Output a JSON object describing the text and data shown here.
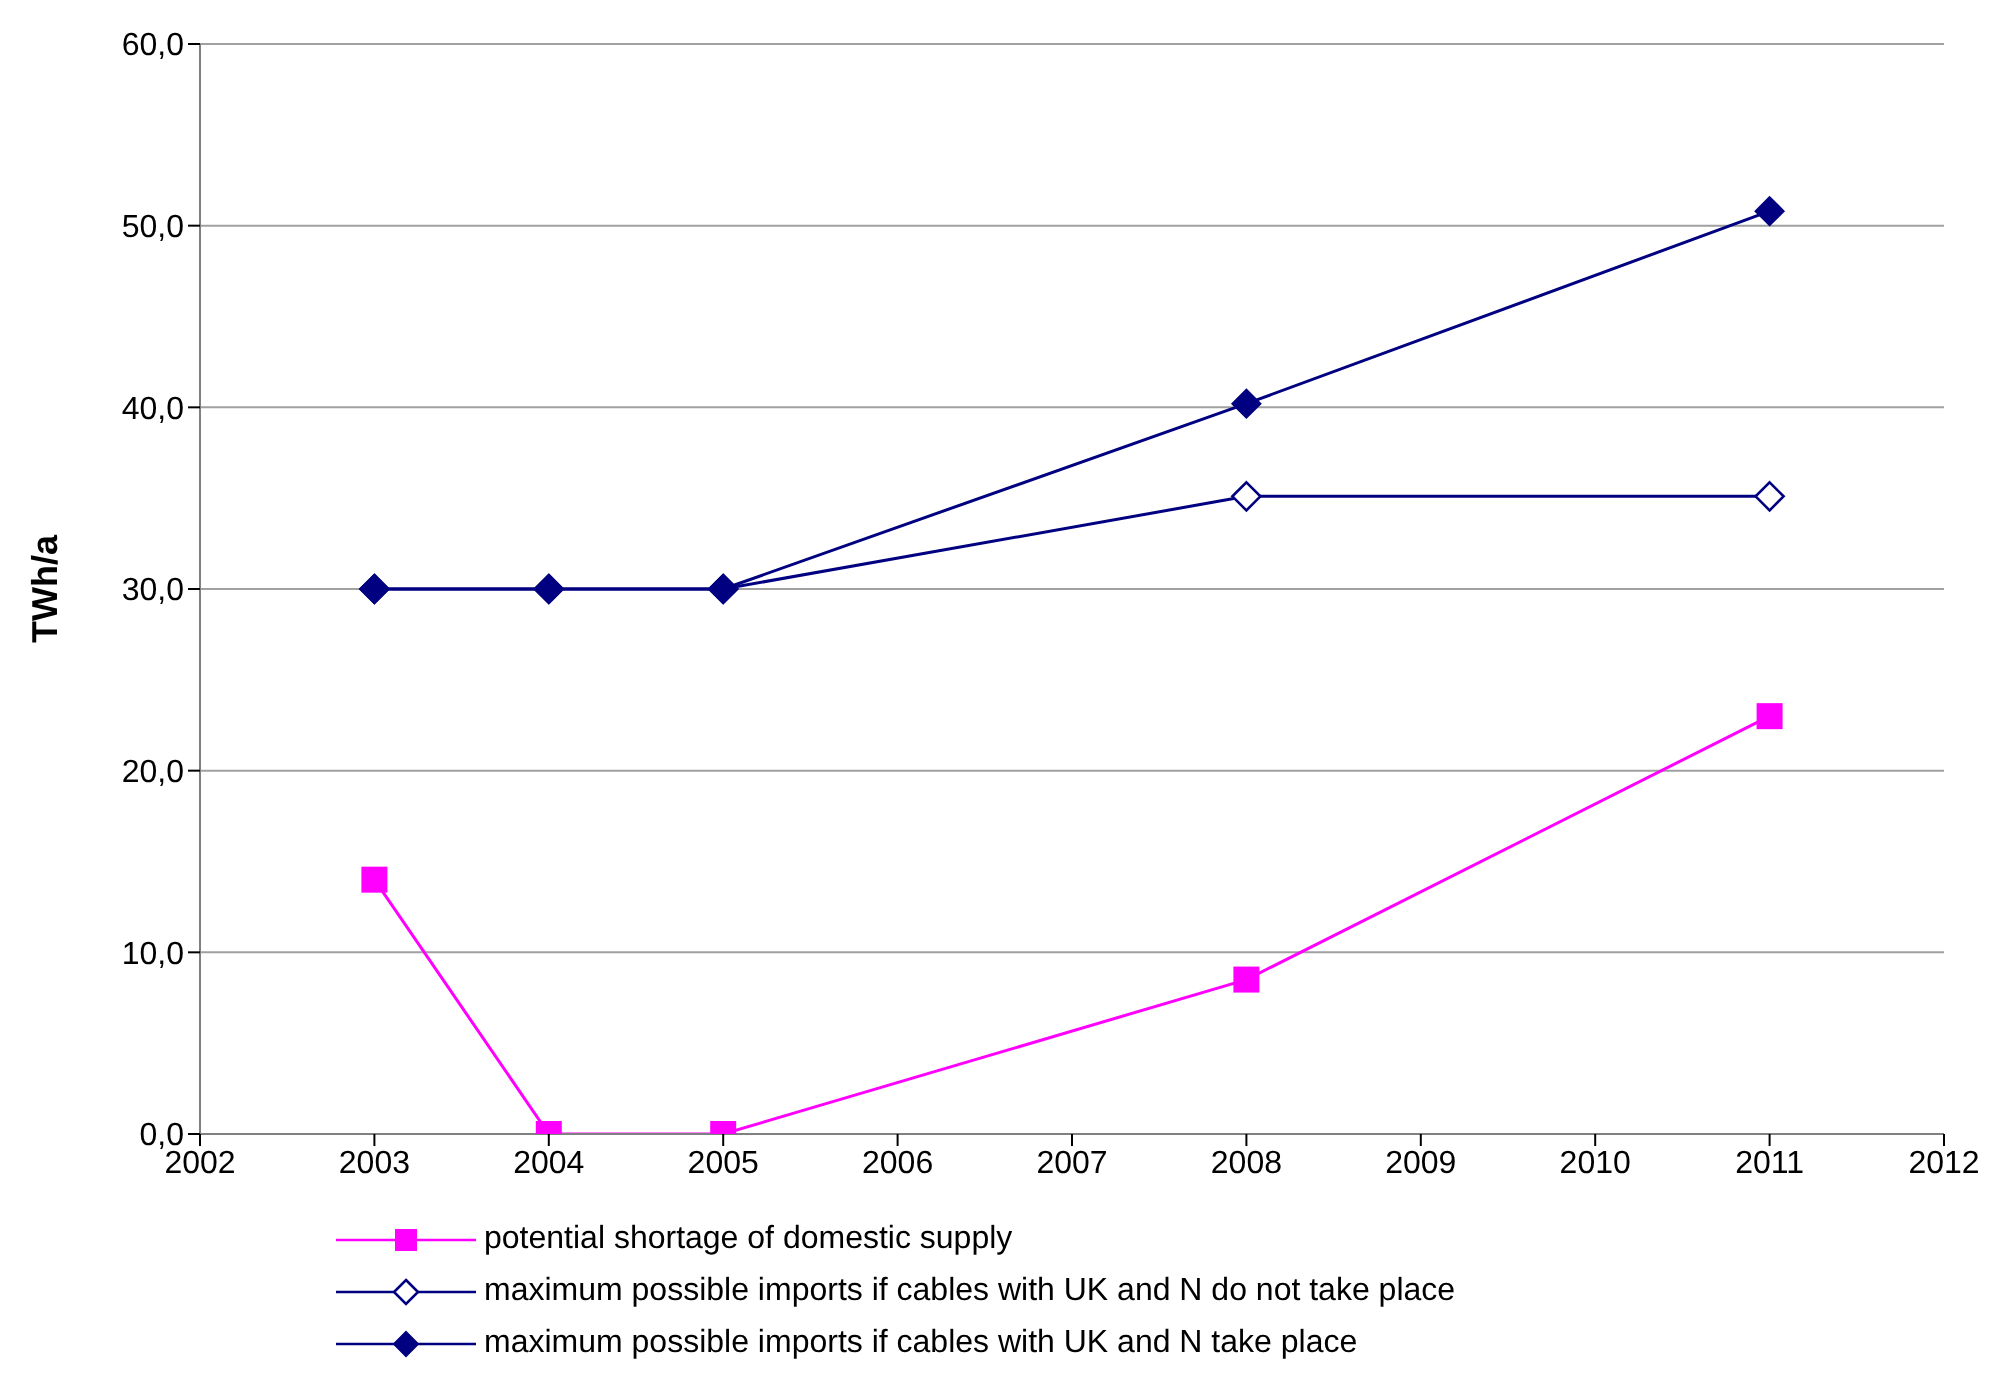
{
  "chart_data": {
    "type": "line",
    "ylabel": "TWh/a",
    "x": [
      2003,
      2004,
      2005,
      2008,
      2011
    ],
    "series": [
      {
        "name": "potential shortage of domestic supply",
        "color": "#ff00ff",
        "marker": "square",
        "values": [
          14,
          0,
          0,
          8.5,
          23
        ]
      },
      {
        "name": "maximum possible imports if cables with UK and N do not take place",
        "color": "#000080",
        "marker": "diamond-open",
        "values": [
          30,
          30,
          30,
          35.1,
          35.1
        ]
      },
      {
        "name": "maximum possible imports if cables with UK and N take place",
        "color": "#000080",
        "marker": "diamond",
        "values": [
          30,
          30,
          30,
          40.2,
          50.8
        ]
      }
    ],
    "xlim": [
      2002,
      2012
    ],
    "xticks": [
      2002,
      2003,
      2004,
      2005,
      2006,
      2007,
      2008,
      2009,
      2010,
      2011,
      2012
    ],
    "ylim": [
      0,
      60
    ],
    "yticks": [
      {
        "value": 0,
        "label": "0,0"
      },
      {
        "value": 10,
        "label": "10,0"
      },
      {
        "value": 20,
        "label": "20,0"
      },
      {
        "value": 30,
        "label": "30,0"
      },
      {
        "value": 40,
        "label": "40,0"
      },
      {
        "value": 50,
        "label": "50,0"
      },
      {
        "value": 60,
        "label": "60,0"
      }
    ],
    "grid": "y",
    "legend": "bottom"
  }
}
